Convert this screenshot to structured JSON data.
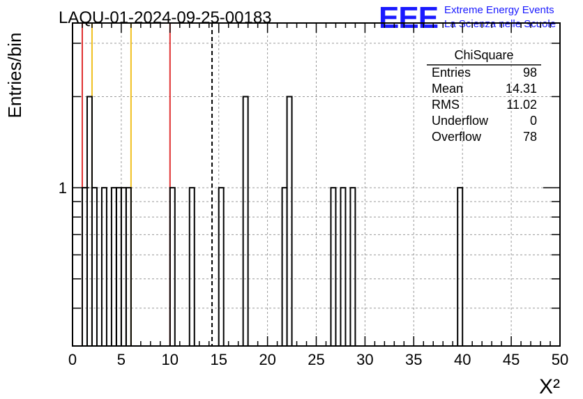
{
  "chart_data": {
    "type": "bar",
    "title": "LAQU-01-2024-09-25-00183",
    "xlabel": "X²",
    "ylabel": "Entries/bin",
    "xlim": [
      0,
      50
    ],
    "ylim": [
      0.3,
      3.5
    ],
    "yscale": "log",
    "x_tick_labels": [
      "0",
      "5",
      "10",
      "15",
      "20",
      "25",
      "30",
      "35",
      "40",
      "45",
      "50"
    ],
    "y_tick_labels": [
      "1"
    ],
    "bin_width": 0.5,
    "bins": [
      {
        "x": 1.0,
        "count": 1
      },
      {
        "x": 1.5,
        "count": 2
      },
      {
        "x": 2.0,
        "count": 1
      },
      {
        "x": 3.0,
        "count": 1
      },
      {
        "x": 4.0,
        "count": 1
      },
      {
        "x": 4.5,
        "count": 1
      },
      {
        "x": 5.0,
        "count": 1
      },
      {
        "x": 5.5,
        "count": 1
      },
      {
        "x": 10.0,
        "count": 1
      },
      {
        "x": 12.0,
        "count": 1
      },
      {
        "x": 15.0,
        "count": 1
      },
      {
        "x": 17.5,
        "count": 2
      },
      {
        "x": 21.5,
        "count": 1
      },
      {
        "x": 22.0,
        "count": 2
      },
      {
        "x": 26.5,
        "count": 1
      },
      {
        "x": 27.5,
        "count": 1
      },
      {
        "x": 28.5,
        "count": 1
      },
      {
        "x": 39.5,
        "count": 1
      }
    ],
    "reference_lines": [
      {
        "x": 1.0,
        "color": "#e03030",
        "style": "solid"
      },
      {
        "x": 2.0,
        "color": "#f0c020",
        "style": "solid"
      },
      {
        "x": 6.0,
        "color": "#f0c020",
        "style": "solid"
      },
      {
        "x": 10.0,
        "color": "#e03030",
        "style": "solid"
      },
      {
        "x": 14.31,
        "color": "#000000",
        "style": "dashed"
      }
    ],
    "stats_box": {
      "title": "ChiSquare",
      "rows": [
        {
          "label": "Entries",
          "value": "98"
        },
        {
          "label": "Mean",
          "value": "14.31"
        },
        {
          "label": "RMS",
          "value": "11.02"
        },
        {
          "label": "Underflow",
          "value": "0"
        },
        {
          "label": "Overflow",
          "value": "78"
        }
      ]
    },
    "grid": true
  },
  "logo": {
    "mark": "EEE",
    "line1": "Extreme Energy Events",
    "line2": "La Scienza nelle Scuole",
    "color": "#1a1aff"
  }
}
